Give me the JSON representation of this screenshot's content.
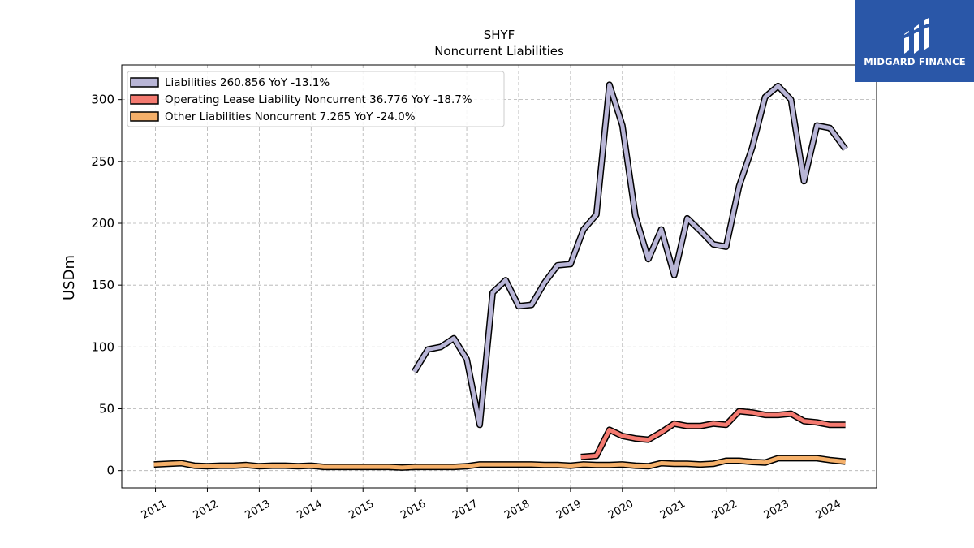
{
  "brand": {
    "name": "MIDGARD FINANCE",
    "logo_icon": "midgard-logo-icon",
    "background": "#2a57a8"
  },
  "chart_data": {
    "type": "line",
    "title": "SHYF",
    "subtitle": "Noncurrent  Liabilities",
    "ylabel": "USDm",
    "xlabel": "",
    "ylim": [
      -14,
      328
    ],
    "xlim": [
      2010.35,
      2024.9
    ],
    "yticks": [
      0,
      50,
      100,
      150,
      200,
      250,
      300
    ],
    "xticks": [
      "2011",
      "2012",
      "2013",
      "2014",
      "2015",
      "2016",
      "2017",
      "2018",
      "2019",
      "2020",
      "2021",
      "2022",
      "2023",
      "2024"
    ],
    "grid": true,
    "legend_position": "top-left",
    "series": [
      {
        "name": "Liabilities  260.856 YoY -13.1%",
        "color": "#b8b5d6",
        "x": [
          2015.99,
          2016.25,
          2016.5,
          2016.75,
          2017.0,
          2017.25,
          2017.5,
          2017.75,
          2018.0,
          2018.25,
          2018.5,
          2018.75,
          2019.0,
          2019.25,
          2019.5,
          2019.75,
          2020.0,
          2020.25,
          2020.5,
          2020.75,
          2021.0,
          2021.25,
          2021.5,
          2021.75,
          2022.0,
          2022.25,
          2022.5,
          2022.75,
          2023.0,
          2023.25,
          2023.5,
          2023.75,
          2024.0,
          2024.3
        ],
        "values": [
          80,
          98,
          100,
          107,
          90,
          37,
          144,
          154,
          133,
          134,
          152,
          166,
          167,
          195,
          207,
          312,
          279,
          206,
          171,
          195,
          158,
          204,
          194,
          183,
          181,
          230,
          261,
          302,
          311,
          300,
          234,
          279,
          277,
          260
        ]
      },
      {
        "name": "Operating Lease Liability Noncurrent  36.776 YoY -18.7%",
        "color": "#f47a70",
        "x": [
          2019.2,
          2019.5,
          2019.75,
          2020.0,
          2020.25,
          2020.5,
          2020.75,
          2021.0,
          2021.25,
          2021.5,
          2021.75,
          2022.0,
          2022.25,
          2022.5,
          2022.75,
          2023.0,
          2023.25,
          2023.5,
          2023.75,
          2024.0,
          2024.3
        ],
        "values": [
          11,
          12,
          33,
          28,
          26,
          25,
          31,
          38,
          36,
          36,
          38,
          37,
          48,
          47,
          45,
          45,
          46,
          40,
          39,
          37,
          37
        ]
      },
      {
        "name": "Other Liabilities Noncurrent  7.265 YoY -24.0%",
        "color": "#f5b06a",
        "x": [
          2010.97,
          2011.25,
          2011.5,
          2011.75,
          2012.0,
          2012.25,
          2012.5,
          2012.75,
          2013.0,
          2013.25,
          2013.5,
          2013.75,
          2014.0,
          2014.25,
          2014.5,
          2014.75,
          2015.0,
          2015.25,
          2015.5,
          2015.75,
          2016.0,
          2016.25,
          2016.5,
          2016.75,
          2017.0,
          2017.25,
          2017.5,
          2017.75,
          2018.0,
          2018.25,
          2018.5,
          2018.75,
          2019.0,
          2019.25,
          2019.5,
          2019.75,
          2020.0,
          2020.25,
          2020.5,
          2020.75,
          2021.0,
          2021.25,
          2021.5,
          2021.75,
          2022.0,
          2022.25,
          2022.5,
          2022.75,
          2023.0,
          2023.25,
          2023.5,
          2023.75,
          2024.0,
          2024.3
        ],
        "values": [
          5,
          5.5,
          6,
          4,
          3.5,
          4,
          4,
          4.5,
          3.5,
          4,
          4,
          3.5,
          4,
          3,
          3,
          3,
          3,
          3,
          3,
          2.5,
          3,
          3,
          3,
          3,
          3.5,
          5,
          5,
          5,
          5,
          5,
          4.5,
          4.5,
          4,
          5,
          4.5,
          4.5,
          5,
          4,
          3.5,
          6,
          5.5,
          5.5,
          5,
          5.5,
          8,
          8,
          7,
          6.5,
          10,
          10,
          10,
          10,
          8.5,
          7.3
        ]
      }
    ]
  }
}
